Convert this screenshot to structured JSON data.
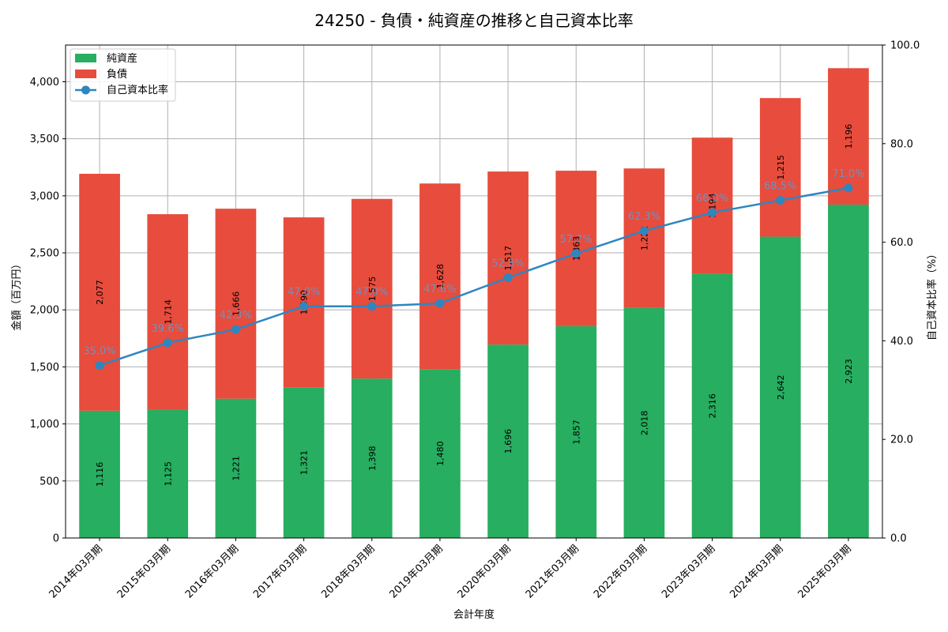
{
  "chart_data": {
    "type": "bar",
    "stacked": true,
    "title": "24250 - 負債・純資産の推移と自己資本比率",
    "xlabel": "会計年度",
    "ylabel": "金額（百万円）",
    "y2label": "自己資本比率（%）",
    "ylim": [
      0,
      4322
    ],
    "y2lim": [
      0,
      100
    ],
    "yticks": [
      "0",
      "500",
      "1,000",
      "1,500",
      "2,000",
      "2,500",
      "3,000",
      "3,500",
      "4,000"
    ],
    "y2ticks": [
      "0.0",
      "20.0",
      "40.0",
      "60.0",
      "80.0",
      "100.0"
    ],
    "grid": true,
    "legend_position": "top-left",
    "categories": [
      "2014年03月期",
      "2015年03月期",
      "2016年03月期",
      "2017年03月期",
      "2018年03月期",
      "2019年03月期",
      "2020年03月期",
      "2021年03月期",
      "2022年03月期",
      "2023年03月期",
      "2024年03月期",
      "2025年03月期"
    ],
    "series": [
      {
        "name": "純資産",
        "type": "bar",
        "color": "#27ae60",
        "values": [
          1116,
          1125,
          1221,
          1321,
          1398,
          1480,
          1696,
          1857,
          2018,
          2316,
          2642,
          2923
        ],
        "labels": [
          "1,116",
          "1,125",
          "1,221",
          "1,321",
          "1,398",
          "1,480",
          "1,696",
          "1,857",
          "2,018",
          "2,316",
          "2,642",
          "2,923"
        ]
      },
      {
        "name": "負債",
        "type": "bar",
        "color": "#e74c3c",
        "values": [
          2077,
          1714,
          1666,
          1490,
          1575,
          1628,
          1517,
          1363,
          1222,
          1194,
          1215,
          1196
        ],
        "labels": [
          "2,077",
          "1,714",
          "1,666",
          "1,490",
          "1,575",
          "1,628",
          "1,517",
          "1,363",
          "1,222",
          "1,194",
          "1,215",
          "1,196"
        ]
      },
      {
        "name": "自己資本比率",
        "type": "line",
        "axis": "right",
        "color": "#2e86c1",
        "values": [
          35.0,
          39.6,
          42.3,
          47.0,
          47.0,
          47.6,
          52.8,
          57.7,
          62.3,
          66.0,
          68.5,
          71.0
        ],
        "labels": [
          "35.0%",
          "39.6%",
          "42.3%",
          "47.0%",
          "47.0%",
          "47.6%",
          "52.8%",
          "57.7%",
          "62.3%",
          "66.0%",
          "68.5%",
          "71.0%"
        ]
      }
    ]
  }
}
